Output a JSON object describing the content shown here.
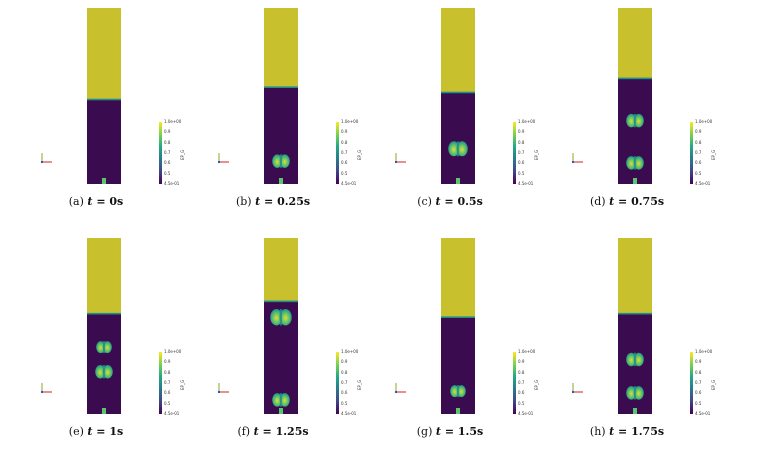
{
  "figure": {
    "colors": {
      "gas": "#c9c02e",
      "solid": "#3a0b4f",
      "bubble_core": "#e2dc35",
      "bubble_mid": "#5cc46b",
      "bubble_edge": "#1f8f8c",
      "axis_x": "#cc2222",
      "axis_y": "#88aa22",
      "axis_z": "#2244aa"
    },
    "colorbar": {
      "title": "EP_G",
      "top_label": "1.0e+00",
      "bottom_label": "4.5e-01",
      "tick_labels": [
        "0.9",
        "0.8",
        "0.7",
        "0.6",
        "0.5"
      ],
      "gradient": [
        "#fde725",
        "#7ad151",
        "#22a884",
        "#2a788e",
        "#414487",
        "#440154"
      ]
    },
    "panels": [
      {
        "label": "(a)",
        "var": "t",
        "eq": "=",
        "value": "0s",
        "bed_top": 0.52,
        "bubbles": []
      },
      {
        "label": "(b)",
        "var": "t",
        "eq": "=",
        "value": "0.25s",
        "bed_top": 0.45,
        "bubbles": [
          {
            "y": 0.87,
            "size": 0.9
          }
        ]
      },
      {
        "label": "(c)",
        "var": "t",
        "eq": "=",
        "value": "0.5s",
        "bed_top": 0.48,
        "bubbles": [
          {
            "y": 0.8,
            "size": 1.0
          }
        ]
      },
      {
        "label": "(d)",
        "var": "t",
        "eq": "=",
        "value": "0.75s",
        "bed_top": 0.4,
        "bubbles": [
          {
            "y": 0.64,
            "size": 0.9
          },
          {
            "y": 0.88,
            "size": 0.9
          }
        ]
      },
      {
        "label": "(e)",
        "var": "t",
        "eq": "=",
        "value": "1s",
        "bed_top": 0.43,
        "bubbles": [
          {
            "y": 0.62,
            "size": 0.8
          },
          {
            "y": 0.76,
            "size": 0.9
          }
        ]
      },
      {
        "label": "(f)",
        "var": "t",
        "eq": "=",
        "value": "1.25s",
        "bed_top": 0.36,
        "bubbles": [
          {
            "y": 0.45,
            "size": 1.1
          },
          {
            "y": 0.92,
            "size": 0.9
          }
        ]
      },
      {
        "label": "(g)",
        "var": "t",
        "eq": "=",
        "value": "1.5s",
        "bed_top": 0.45,
        "bubbles": [
          {
            "y": 0.87,
            "size": 0.8
          }
        ]
      },
      {
        "label": "(h)",
        "var": "t",
        "eq": "=",
        "value": "1.75s",
        "bed_top": 0.43,
        "bubbles": [
          {
            "y": 0.69,
            "size": 0.9
          },
          {
            "y": 0.88,
            "size": 0.9
          }
        ]
      }
    ]
  }
}
